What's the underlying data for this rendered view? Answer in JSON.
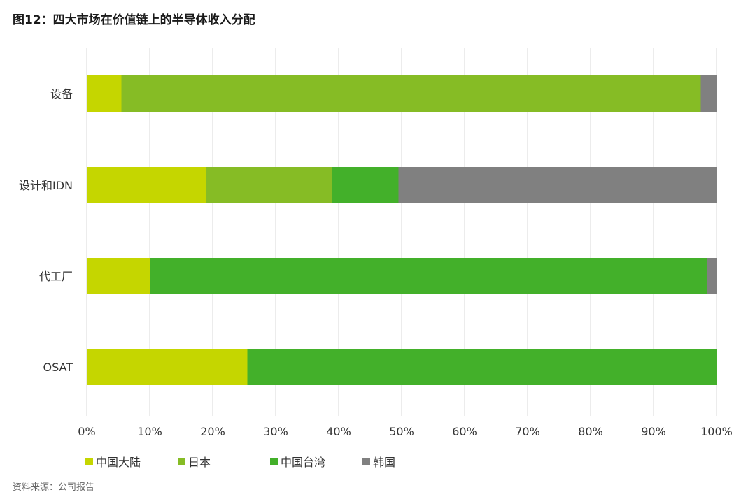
{
  "title": "图12：四大市场在价值链上的半导体收入分配",
  "source": "资料来源：公司报告",
  "chart_data": {
    "type": "bar",
    "orientation": "horizontal",
    "stacked": true,
    "categories": [
      "设备",
      "设计和IDN",
      "代工厂",
      "OSAT"
    ],
    "series": [
      {
        "name": "中国大陆",
        "color": "#c5d600",
        "values": [
          5.5,
          19,
          10,
          25.5
        ]
      },
      {
        "name": "日本",
        "color": "#86bc25",
        "values": [
          92,
          20,
          0,
          0
        ]
      },
      {
        "name": "中国台湾",
        "color": "#43b02a",
        "values": [
          0,
          10.5,
          88.5,
          74.5
        ]
      },
      {
        "name": "韩国",
        "color": "#808080",
        "values": [
          2.5,
          50.5,
          1.5,
          0
        ]
      }
    ],
    "xlim": [
      0,
      100
    ],
    "xticks": [
      "0%",
      "10%",
      "20%",
      "30%",
      "40%",
      "50%",
      "60%",
      "70%",
      "80%",
      "90%",
      "100%"
    ],
    "grid": true,
    "legend": "bottom"
  }
}
